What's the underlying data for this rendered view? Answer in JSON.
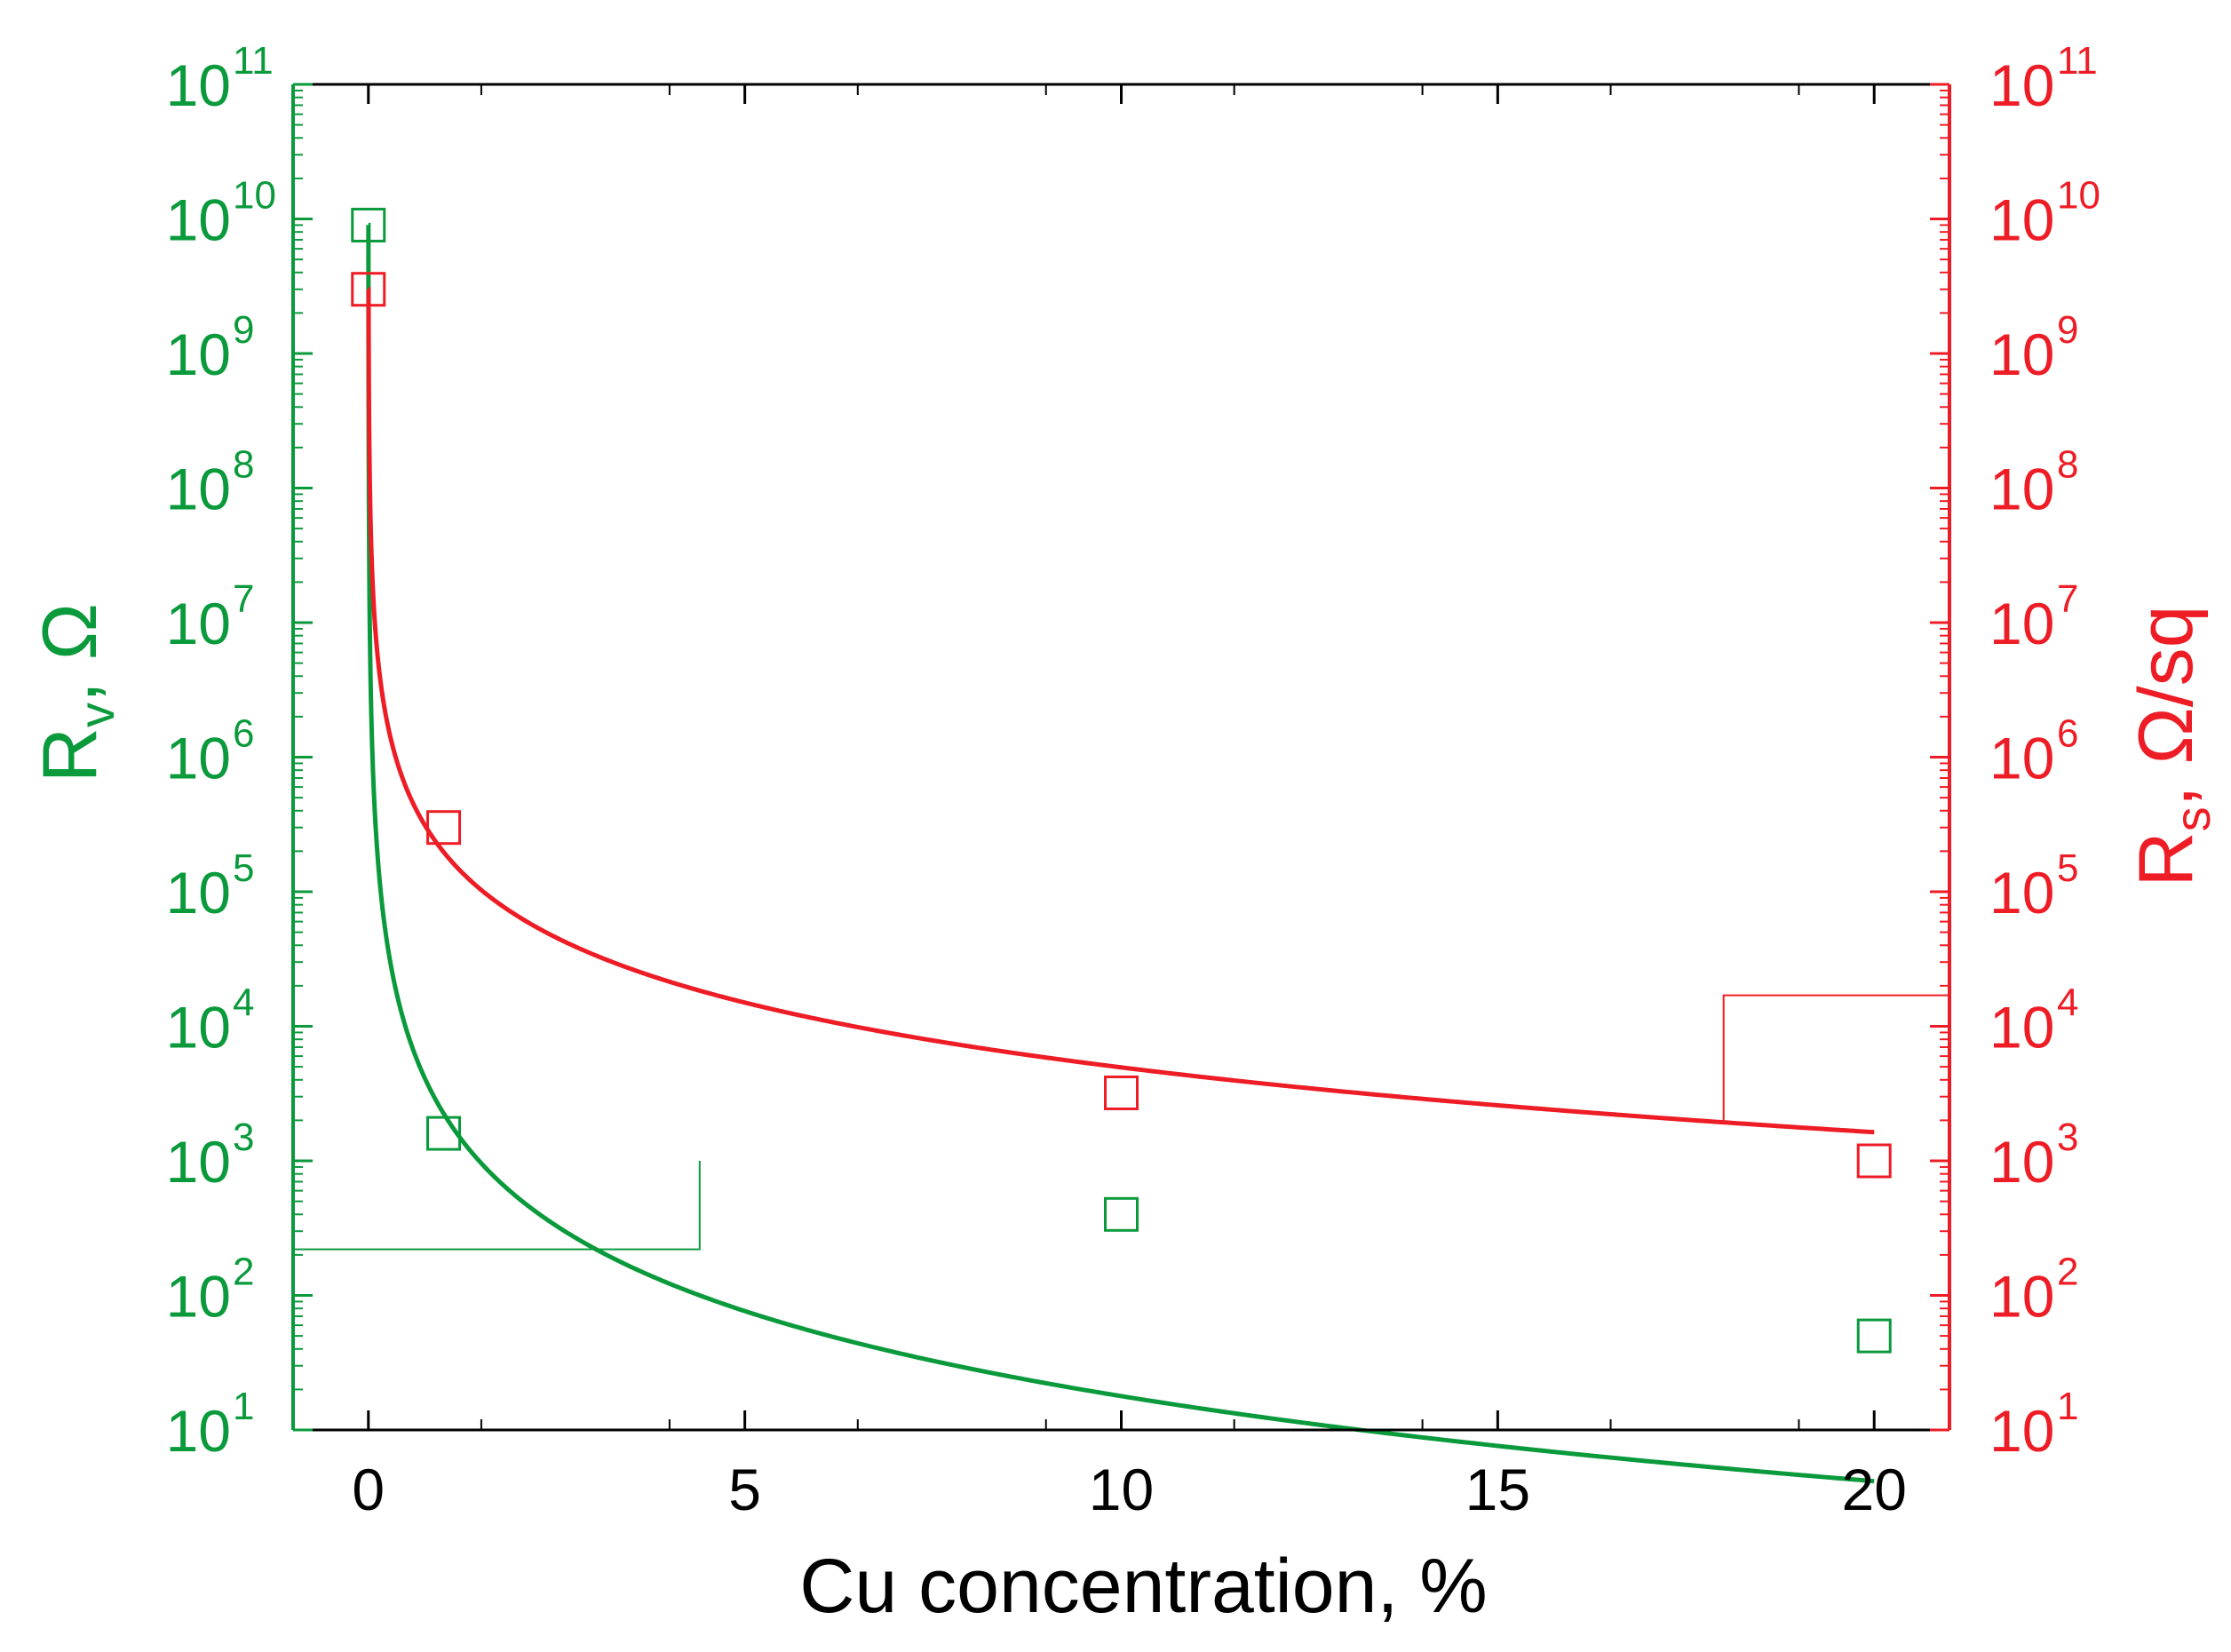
{
  "chart_data": {
    "type": "scatter",
    "x_axis": {
      "label": "Cu concentration, %",
      "range": [
        -1,
        21
      ],
      "ticks": [
        0,
        5,
        10,
        15,
        20
      ],
      "tick_labels": [
        "0",
        "5",
        "10",
        "15",
        "20"
      ]
    },
    "y_left": {
      "label_main": "R",
      "label_sub": "v",
      "label_unit": ", Ω",
      "scale": "log",
      "range": [
        10,
        100000000000
      ],
      "tick_labels": [
        {
          "base": "10",
          "exp": "1"
        },
        {
          "base": "10",
          "exp": "2"
        },
        {
          "base": "10",
          "exp": "3"
        },
        {
          "base": "10",
          "exp": "4"
        },
        {
          "base": "10",
          "exp": "5"
        },
        {
          "base": "10",
          "exp": "6"
        },
        {
          "base": "10",
          "exp": "7"
        },
        {
          "base": "10",
          "exp": "8"
        },
        {
          "base": "10",
          "exp": "9"
        },
        {
          "base": "10",
          "exp": "10"
        },
        {
          "base": "10",
          "exp": "11"
        }
      ],
      "color": "#0a9a3c"
    },
    "y_right": {
      "label_main": "R",
      "label_sub": "s",
      "label_unit": ", Ω/sq",
      "scale": "log",
      "range": [
        10,
        100000000000
      ],
      "tick_labels": [
        {
          "base": "10",
          "exp": "1"
        },
        {
          "base": "10",
          "exp": "2"
        },
        {
          "base": "10",
          "exp": "3"
        },
        {
          "base": "10",
          "exp": "4"
        },
        {
          "base": "10",
          "exp": "5"
        },
        {
          "base": "10",
          "exp": "6"
        },
        {
          "base": "10",
          "exp": "7"
        },
        {
          "base": "10",
          "exp": "8"
        },
        {
          "base": "10",
          "exp": "9"
        },
        {
          "base": "10",
          "exp": "10"
        },
        {
          "base": "10",
          "exp": "11"
        }
      ],
      "color": "#ee1c25"
    },
    "series": [
      {
        "name": "Rv",
        "axis": "left",
        "color": "#0a9a3c",
        "markers": {
          "x": [
            0,
            1,
            10,
            20
          ],
          "y": [
            9000000000,
            1600,
            400,
            50
          ]
        },
        "fit": {
          "model": "power_law",
          "a": 2246,
          "b": -2.1,
          "x_start": 0.0,
          "x_end": 20,
          "clip_max": 9000000000
        }
      },
      {
        "name": "Rs",
        "axis": "right",
        "color": "#ee1c25",
        "markers": {
          "x": [
            0,
            1,
            10,
            20
          ],
          "y": [
            3000000000,
            300000,
            3200,
            1000
          ]
        },
        "fit": {
          "model": "power_law",
          "a": 197000,
          "b": -1.6,
          "x_start": 0.0,
          "x_end": 20,
          "clip_max": 3000000000
        }
      }
    ],
    "axis_indicators": [
      {
        "series": "Rv",
        "points": [
          [
            -1,
            220
          ],
          [
            4.4,
            220
          ],
          [
            4.4,
            1000
          ]
        ]
      },
      {
        "series": "Rs",
        "points": [
          [
            21,
            17000
          ],
          [
            18,
            17000
          ],
          [
            18,
            2000
          ]
        ]
      }
    ],
    "grid": false,
    "legend": "none"
  }
}
